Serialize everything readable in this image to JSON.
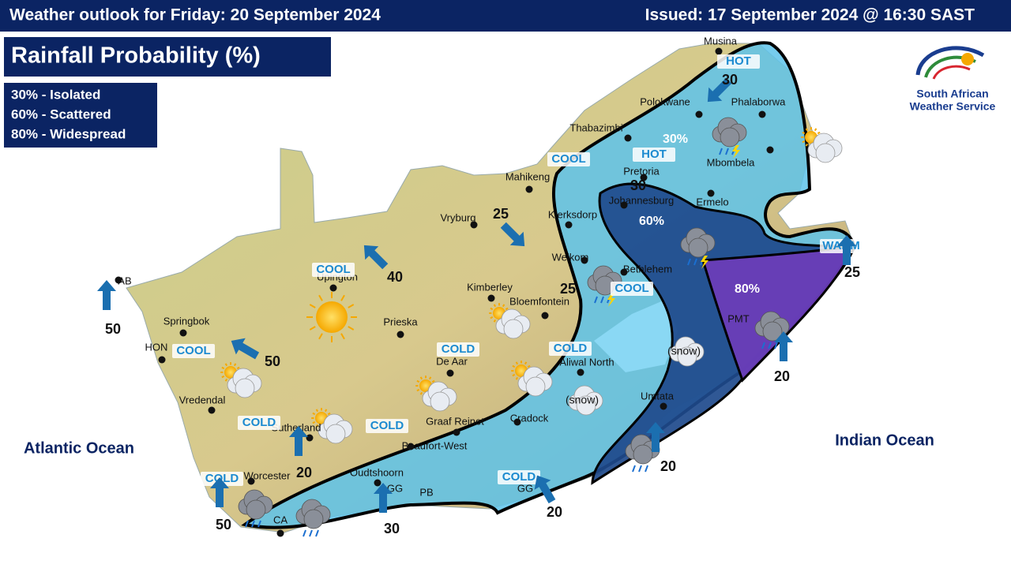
{
  "header": {
    "title": "Weather outlook for Friday: 20 September 2024",
    "issued": "Issued: 17 September 2024  @ 16:30 SAST"
  },
  "panel": {
    "title": "Rainfall Probability (%)"
  },
  "legend": [
    "30% - Isolated",
    "60% - Scattered",
    "80% - Widespread"
  ],
  "logo": {
    "lines": [
      "South African",
      "Weather Service"
    ]
  },
  "oceans": [
    "Atlantic Ocean",
    "Indian Ocean"
  ],
  "zones": [
    "30%",
    "60%",
    "80%"
  ],
  "cities": [
    "Musina",
    "Polokwane",
    "Phalaborwa",
    "Thabazimbi",
    "Mbombela",
    "Mahikeng",
    "Pretoria",
    "Johannesburg",
    "Ermelo",
    "Vryburg",
    "Klerksdorp",
    "Welkom",
    "Bethlehem",
    "Upington",
    "Kimberley",
    "Bloemfontein",
    "Springbok",
    "Prieska",
    "De Aar",
    "Aliwal North",
    "Vredendal",
    "Sutherland",
    "Graaf Reinet",
    "Cradock",
    "Umtata",
    "Beaufort-West",
    "Worcester",
    "Oudtshoorn",
    "GG",
    "PB",
    "GG",
    "CA",
    "PMT",
    "AB",
    "HON"
  ],
  "temperature_labels": [
    "HOT",
    "COOL",
    "HOT",
    "COOL",
    "COOL",
    "COLD",
    "COLD",
    "COLD",
    "COLD",
    "COLD",
    "COLD",
    "COOL",
    "WARM"
  ],
  "wind_speeds": [
    30,
    30,
    25,
    40,
    25,
    50,
    50,
    20,
    50,
    30,
    20,
    20,
    20,
    25
  ],
  "weather_notes": [
    "(snow)",
    "(snow)"
  ]
}
